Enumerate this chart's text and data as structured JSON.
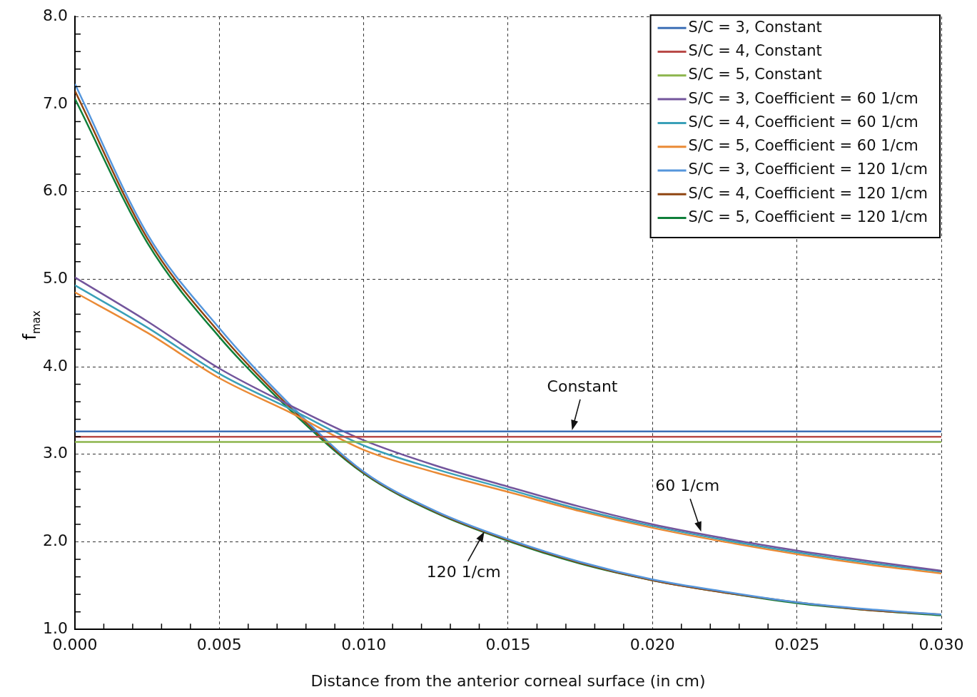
{
  "chart_data": {
    "type": "line",
    "xlabel": "Distance from the anterior corneal surface (in cm)",
    "ylabel": "f$_{max}$",
    "x": [
      0,
      0.0025,
      0.005,
      0.0075,
      0.01,
      0.0125,
      0.015,
      0.0175,
      0.02,
      0.0225,
      0.025,
      0.0275,
      0.03
    ],
    "series": [
      {
        "name": "S/C = 3, Constant",
        "color": "#3d6fb6",
        "values": [
          3.26,
          3.26,
          3.26,
          3.26,
          3.26,
          3.26,
          3.26,
          3.26,
          3.26,
          3.26,
          3.26,
          3.26,
          3.26
        ]
      },
      {
        "name": "S/C = 4, Constant",
        "color": "#b94a48",
        "values": [
          3.2,
          3.2,
          3.2,
          3.2,
          3.2,
          3.2,
          3.2,
          3.2,
          3.2,
          3.2,
          3.2,
          3.2,
          3.2
        ]
      },
      {
        "name": "S/C = 5, Constant",
        "color": "#8db54c",
        "values": [
          3.14,
          3.14,
          3.14,
          3.14,
          3.14,
          3.14,
          3.14,
          3.14,
          3.14,
          3.14,
          3.14,
          3.14,
          3.14
        ]
      },
      {
        "name": "S/C = 3, Coefficient = 60 1/cm",
        "color": "#73559c",
        "values": [
          5.02,
          4.52,
          3.98,
          3.55,
          3.16,
          2.87,
          2.63,
          2.4,
          2.2,
          2.04,
          1.9,
          1.78,
          1.67
        ]
      },
      {
        "name": "S/C = 4, Coefficient = 60 1/cm",
        "color": "#3aa0b8",
        "values": [
          4.93,
          4.45,
          3.92,
          3.51,
          3.1,
          2.83,
          2.6,
          2.37,
          2.18,
          2.02,
          1.88,
          1.76,
          1.66
        ]
      },
      {
        "name": "S/C = 5, Coefficient = 60 1/cm",
        "color": "#ea8a35",
        "values": [
          4.85,
          4.39,
          3.87,
          3.47,
          3.05,
          2.79,
          2.57,
          2.35,
          2.16,
          2.0,
          1.86,
          1.74,
          1.64
        ]
      },
      {
        "name": "S/C = 3, Coefficient = 120 1/cm",
        "color": "#5596dc",
        "values": [
          7.23,
          5.52,
          4.44,
          3.55,
          2.8,
          2.35,
          2.03,
          1.77,
          1.57,
          1.43,
          1.31,
          1.23,
          1.17
        ]
      },
      {
        "name": "S/C = 4, Coefficient = 120 1/cm",
        "color": "#8f4410",
        "values": [
          7.15,
          5.47,
          4.39,
          3.52,
          2.79,
          2.34,
          2.02,
          1.76,
          1.56,
          1.42,
          1.31,
          1.22,
          1.17
        ]
      },
      {
        "name": "S/C = 5, Coefficient = 120 1/cm",
        "color": "#0f7f3a",
        "values": [
          7.06,
          5.42,
          4.34,
          3.49,
          2.78,
          2.33,
          2.01,
          1.75,
          1.56,
          1.42,
          1.3,
          1.22,
          1.16
        ]
      }
    ],
    "xlim": [
      0,
      0.03
    ],
    "xticks": [
      {
        "value": 0,
        "label": "0.000"
      },
      {
        "value": 0.005,
        "label": "0.005"
      },
      {
        "value": 0.01,
        "label": "0.010"
      },
      {
        "value": 0.015,
        "label": "0.015"
      },
      {
        "value": 0.02,
        "label": "0.020"
      },
      {
        "value": 0.025,
        "label": "0.025"
      },
      {
        "value": 0.03,
        "label": "0.030"
      }
    ],
    "ylim": [
      1,
      8
    ],
    "yticks": [
      {
        "value": 1,
        "label": "1.0"
      },
      {
        "value": 2,
        "label": "2.0"
      },
      {
        "value": 3,
        "label": "3.0"
      },
      {
        "value": 4,
        "label": "4.0"
      },
      {
        "value": 5,
        "label": "5.0"
      },
      {
        "value": 6,
        "label": "6.0"
      },
      {
        "value": 7,
        "label": "7.0"
      },
      {
        "value": 8,
        "label": "8.0"
      }
    ],
    "annotations": [
      {
        "text": "Constant",
        "x": 0.0172,
        "y": 3.26
      },
      {
        "text": "60 1/cm",
        "x": 0.0217,
        "y": 2.1
      },
      {
        "text": "120 1/cm",
        "x": 0.0142,
        "y": 2.13
      }
    ],
    "grid": true,
    "legend": "top right",
    "marker": "none",
    "line_style": "solid"
  }
}
